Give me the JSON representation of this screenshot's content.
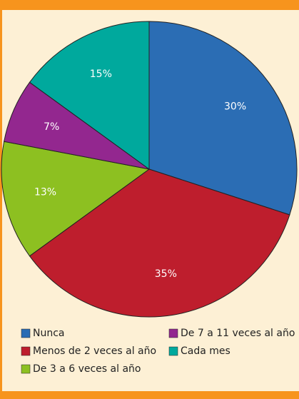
{
  "chart_data": {
    "type": "pie",
    "categories": [
      "Nunca",
      "Menos de 2 veces al año",
      "De 3 a 6 veces al año",
      "De 7 a 11 veces al año",
      "Cada mes"
    ],
    "values": [
      30,
      35,
      13,
      7,
      15
    ],
    "value_labels": [
      "30%",
      "35%",
      "13%",
      "7%",
      "15%"
    ],
    "colors": [
      "#2b6db4",
      "#be1e2d",
      "#8dc021",
      "#93278f",
      "#00a99d"
    ]
  }
}
